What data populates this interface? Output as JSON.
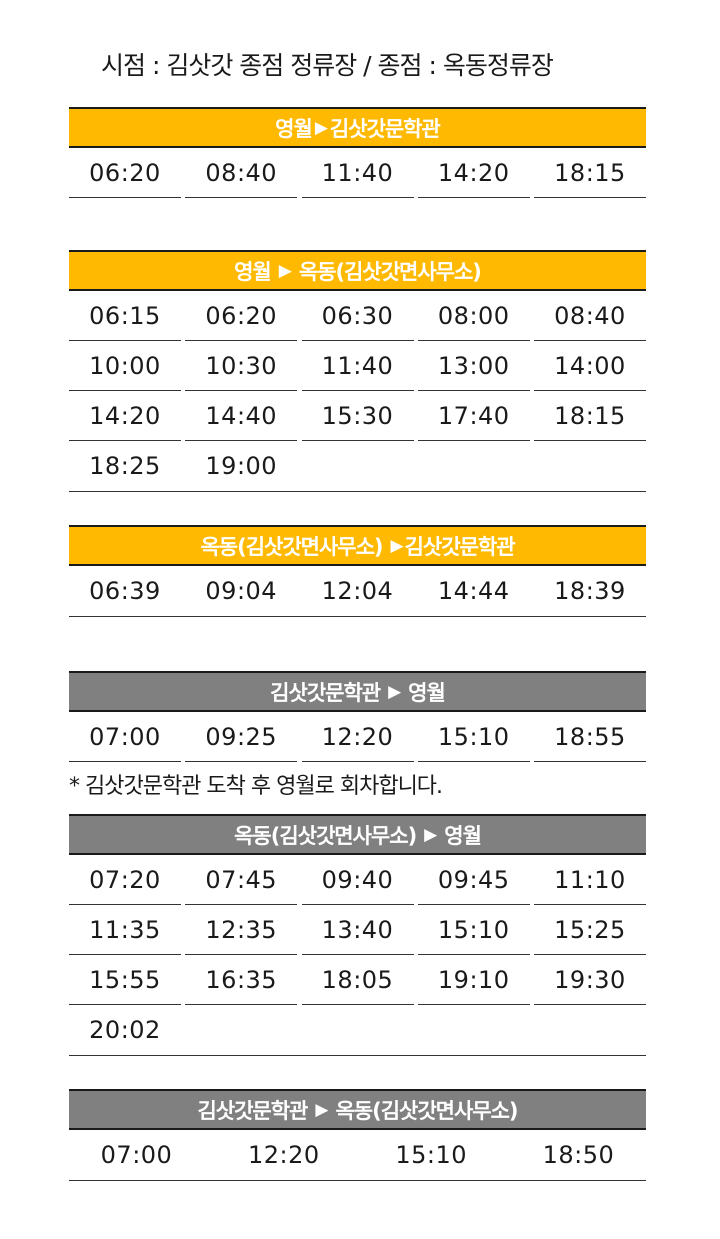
{
  "title": "시점 : 김삿갓 종점 정류장 / 종점 : 옥동정류장",
  "arrow": "▶",
  "sections": [
    {
      "from": "영월",
      "to": "김삿갓문학관",
      "color": "#ffb900",
      "times": [
        "06:20",
        "08:40",
        "11:40",
        "14:20",
        "18:15"
      ]
    },
    {
      "from": "영월",
      "to": "옥동(김삿갓면사무소)",
      "color": "#ffb900",
      "times": [
        "06:15",
        "06:20",
        "06:30",
        "08:00",
        "08:40",
        "10:00",
        "10:30",
        "11:40",
        "13:00",
        "14:00",
        "14:20",
        "14:40",
        "15:30",
        "17:40",
        "18:15",
        "18:25",
        "19:00"
      ]
    },
    {
      "from": "옥동(김삿갓면사무소)",
      "to": "김삿갓문학관",
      "color": "#ffb900",
      "times": [
        "06:39",
        "09:04",
        "12:04",
        "14:44",
        "18:39"
      ]
    },
    {
      "from": "김삿갓문학관",
      "to": "영월",
      "color": "#808080",
      "times": [
        "07:00",
        "09:25",
        "12:20",
        "15:10",
        "18:55"
      ]
    },
    {
      "from": "옥동(김삿갓면사무소)",
      "to": "영월",
      "color": "#808080",
      "times": [
        "07:20",
        "07:45",
        "09:40",
        "09:45",
        "11:10",
        "11:35",
        "12:35",
        "13:40",
        "15:10",
        "15:25",
        "15:55",
        "16:35",
        "18:05",
        "19:10",
        "19:30",
        "20:02"
      ]
    },
    {
      "from": "김삿갓문학관",
      "to": "옥동(김삿갓면사무소)",
      "color": "#808080",
      "times": [
        "07:00",
        "12:20",
        "15:10",
        "18:50"
      ]
    }
  ],
  "note": "* 김삿갓문학관 도착 후 영월로 회차합니다."
}
